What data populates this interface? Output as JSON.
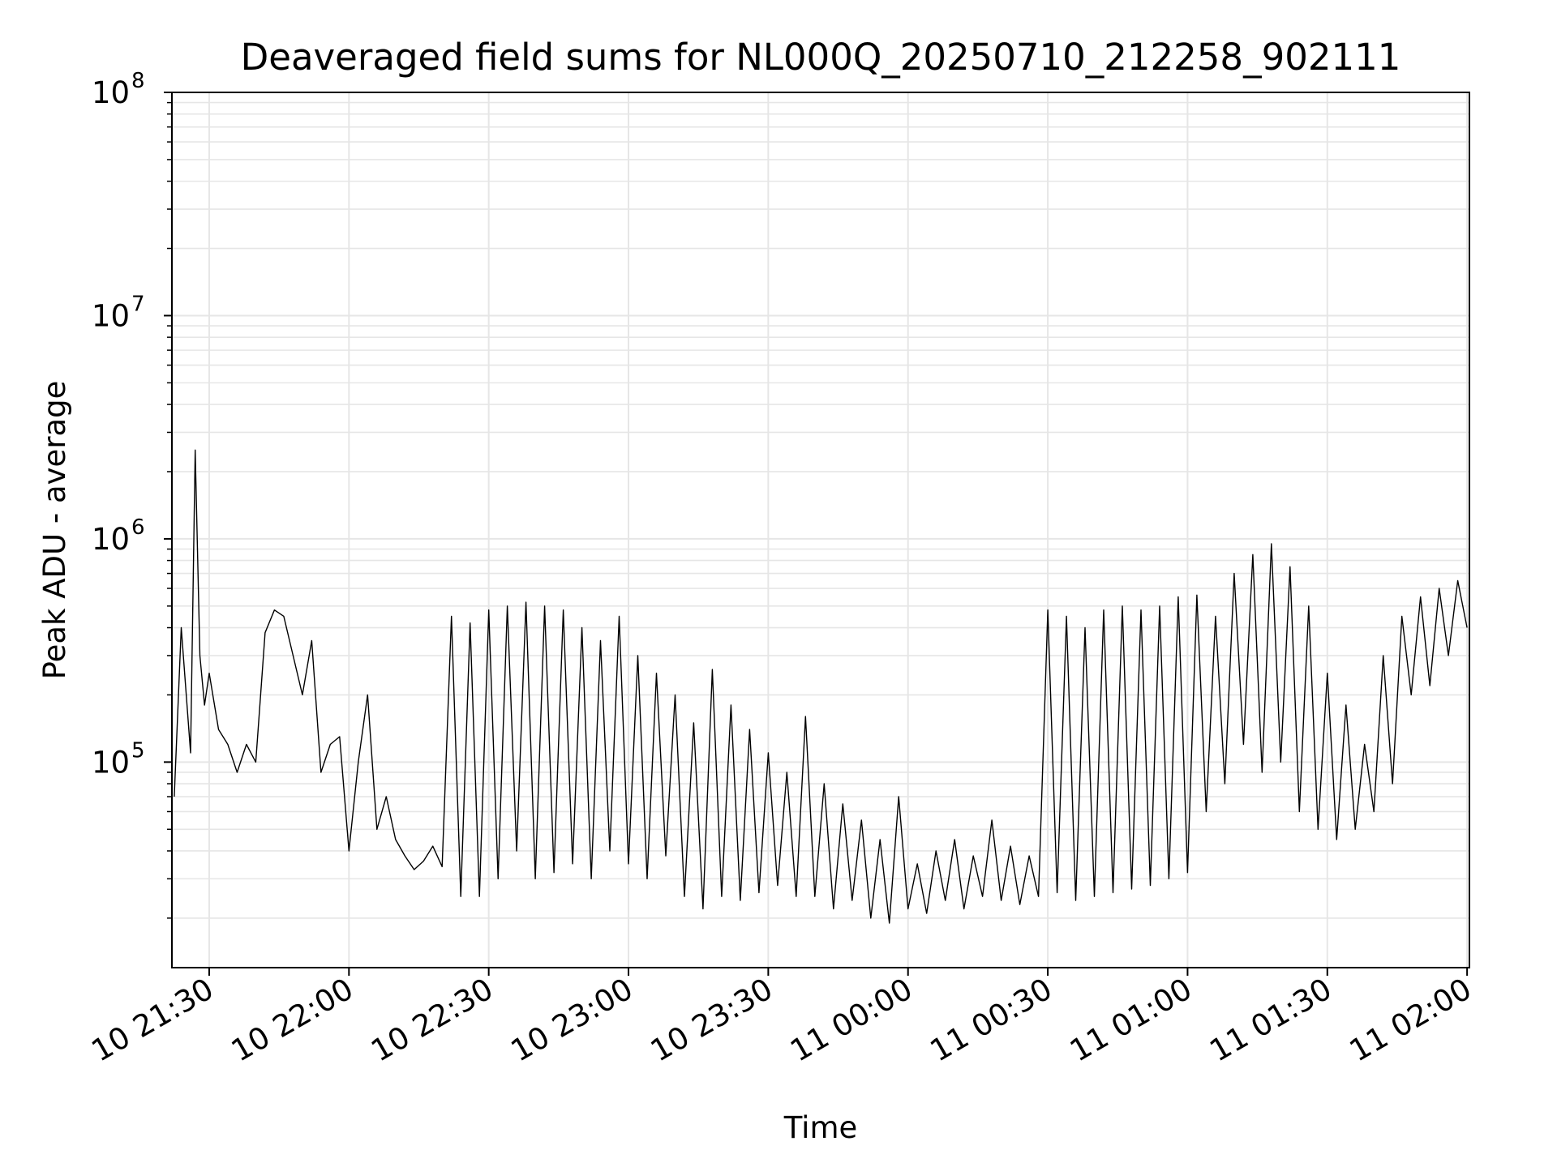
{
  "chart_data": {
    "type": "line",
    "title": "Deaveraged field sums for NL000Q_20250710_212258_902111",
    "xlabel": "Time",
    "ylabel": "Peak ADU - average",
    "yscale": "log",
    "ylim": [
      12000,
      100000000
    ],
    "xlim": [
      "2025-07-10 21:22:00",
      "2025-07-11 02:00:30"
    ],
    "grid": true,
    "line_color": "#000000",
    "grid_color": "#e6e6e6",
    "x_ticks": [
      {
        "value": "2025-07-10 21:30",
        "label": "10 21:30"
      },
      {
        "value": "2025-07-10 22:00",
        "label": "10 22:00"
      },
      {
        "value": "2025-07-10 22:30",
        "label": "10 22:30"
      },
      {
        "value": "2025-07-10 23:00",
        "label": "10 23:00"
      },
      {
        "value": "2025-07-10 23:30",
        "label": "10 23:30"
      },
      {
        "value": "2025-07-11 00:00",
        "label": "11 00:00"
      },
      {
        "value": "2025-07-11 00:30",
        "label": "11 00:30"
      },
      {
        "value": "2025-07-11 01:00",
        "label": "11 01:00"
      },
      {
        "value": "2025-07-11 01:30",
        "label": "11 01:30"
      },
      {
        "value": "2025-07-11 02:00",
        "label": "11 02:00"
      }
    ],
    "y_ticks": [
      {
        "value": 100000,
        "base": "10",
        "exp": "5"
      },
      {
        "value": 1000000,
        "base": "10",
        "exp": "6"
      },
      {
        "value": 10000000,
        "base": "10",
        "exp": "7"
      },
      {
        "value": 100000000,
        "base": "10",
        "exp": "8"
      }
    ],
    "series": [
      {
        "x": [
          "2025-07-10 21:22:30",
          "2025-07-10 21:24:00",
          "2025-07-10 21:26:00",
          "2025-07-10 21:27:00",
          "2025-07-10 21:28:00",
          "2025-07-10 21:29:00",
          "2025-07-10 21:30:00",
          "2025-07-10 21:32:00",
          "2025-07-10 21:34:00",
          "2025-07-10 21:36:00",
          "2025-07-10 21:38:00",
          "2025-07-10 21:40:00",
          "2025-07-10 21:42:00",
          "2025-07-10 21:44:00",
          "2025-07-10 21:46:00",
          "2025-07-10 21:48:00",
          "2025-07-10 21:50:00",
          "2025-07-10 21:52:00",
          "2025-07-10 21:54:00",
          "2025-07-10 21:56:00",
          "2025-07-10 21:58:00",
          "2025-07-10 22:00:00",
          "2025-07-10 22:02:00",
          "2025-07-10 22:04:00",
          "2025-07-10 22:06:00",
          "2025-07-10 22:08:00",
          "2025-07-10 22:10:00",
          "2025-07-10 22:12:00",
          "2025-07-10 22:14:00",
          "2025-07-10 22:16:00",
          "2025-07-10 22:18:00",
          "2025-07-10 22:20:00",
          "2025-07-10 22:22:00",
          "2025-07-10 22:24:00",
          "2025-07-10 22:26:00",
          "2025-07-10 22:28:00",
          "2025-07-10 22:30:00",
          "2025-07-10 22:32:00",
          "2025-07-10 22:34:00",
          "2025-07-10 22:36:00",
          "2025-07-10 22:38:00",
          "2025-07-10 22:40:00",
          "2025-07-10 22:42:00",
          "2025-07-10 22:44:00",
          "2025-07-10 22:46:00",
          "2025-07-10 22:48:00",
          "2025-07-10 22:50:00",
          "2025-07-10 22:52:00",
          "2025-07-10 22:54:00",
          "2025-07-10 22:56:00",
          "2025-07-10 22:58:00",
          "2025-07-10 23:00:00",
          "2025-07-10 23:02:00",
          "2025-07-10 23:04:00",
          "2025-07-10 23:06:00",
          "2025-07-10 23:08:00",
          "2025-07-10 23:10:00",
          "2025-07-10 23:12:00",
          "2025-07-10 23:14:00",
          "2025-07-10 23:16:00",
          "2025-07-10 23:18:00",
          "2025-07-10 23:20:00",
          "2025-07-10 23:22:00",
          "2025-07-10 23:24:00",
          "2025-07-10 23:26:00",
          "2025-07-10 23:28:00",
          "2025-07-10 23:30:00",
          "2025-07-10 23:32:00",
          "2025-07-10 23:34:00",
          "2025-07-10 23:36:00",
          "2025-07-10 23:38:00",
          "2025-07-10 23:40:00",
          "2025-07-10 23:42:00",
          "2025-07-10 23:44:00",
          "2025-07-10 23:46:00",
          "2025-07-10 23:48:00",
          "2025-07-10 23:50:00",
          "2025-07-10 23:52:00",
          "2025-07-10 23:54:00",
          "2025-07-10 23:56:00",
          "2025-07-10 23:58:00",
          "2025-07-11 00:00:00",
          "2025-07-11 00:02:00",
          "2025-07-11 00:04:00",
          "2025-07-11 00:06:00",
          "2025-07-11 00:08:00",
          "2025-07-11 00:10:00",
          "2025-07-11 00:12:00",
          "2025-07-11 00:14:00",
          "2025-07-11 00:16:00",
          "2025-07-11 00:18:00",
          "2025-07-11 00:20:00",
          "2025-07-11 00:22:00",
          "2025-07-11 00:24:00",
          "2025-07-11 00:26:00",
          "2025-07-11 00:28:00",
          "2025-07-11 00:30:00",
          "2025-07-11 00:32:00",
          "2025-07-11 00:34:00",
          "2025-07-11 00:36:00",
          "2025-07-11 00:38:00",
          "2025-07-11 00:40:00",
          "2025-07-11 00:42:00",
          "2025-07-11 00:44:00",
          "2025-07-11 00:46:00",
          "2025-07-11 00:48:00",
          "2025-07-11 00:50:00",
          "2025-07-11 00:52:00",
          "2025-07-11 00:54:00",
          "2025-07-11 00:56:00",
          "2025-07-11 00:58:00",
          "2025-07-11 01:00:00",
          "2025-07-11 01:02:00",
          "2025-07-11 01:04:00",
          "2025-07-11 01:06:00",
          "2025-07-11 01:08:00",
          "2025-07-11 01:10:00",
          "2025-07-11 01:12:00",
          "2025-07-11 01:14:00",
          "2025-07-11 01:16:00",
          "2025-07-11 01:18:00",
          "2025-07-11 01:20:00",
          "2025-07-11 01:22:00",
          "2025-07-11 01:24:00",
          "2025-07-11 01:26:00",
          "2025-07-11 01:28:00",
          "2025-07-11 01:30:00",
          "2025-07-11 01:32:00",
          "2025-07-11 01:34:00",
          "2025-07-11 01:36:00",
          "2025-07-11 01:38:00",
          "2025-07-11 01:40:00",
          "2025-07-11 01:42:00",
          "2025-07-11 01:44:00",
          "2025-07-11 01:46:00",
          "2025-07-11 01:48:00",
          "2025-07-11 01:50:00",
          "2025-07-11 01:52:00",
          "2025-07-11 01:54:00",
          "2025-07-11 01:56:00",
          "2025-07-11 01:58:00",
          "2025-07-11 02:00:00"
        ],
        "y": [
          70000,
          400000,
          110000,
          2500000,
          300000,
          180000,
          250000,
          140000,
          120000,
          90000,
          120000,
          100000,
          380000,
          480000,
          450000,
          300000,
          200000,
          350000,
          90000,
          120000,
          130000,
          40000,
          100000,
          200000,
          50000,
          70000,
          45000,
          38000,
          33000,
          36000,
          42000,
          34000,
          450000,
          25000,
          420000,
          25000,
          480000,
          30000,
          500000,
          40000,
          520000,
          30000,
          500000,
          32000,
          480000,
          35000,
          400000,
          30000,
          350000,
          40000,
          450000,
          35000,
          300000,
          30000,
          250000,
          38000,
          200000,
          25000,
          150000,
          22000,
          260000,
          25000,
          180000,
          24000,
          140000,
          26000,
          110000,
          28000,
          90000,
          25000,
          160000,
          25000,
          80000,
          22000,
          65000,
          24000,
          55000,
          20000,
          45000,
          19000,
          70000,
          22000,
          35000,
          21000,
          40000,
          24000,
          45000,
          22000,
          38000,
          25000,
          55000,
          24000,
          42000,
          23000,
          38000,
          25000,
          480000,
          26000,
          450000,
          24000,
          400000,
          25000,
          480000,
          26000,
          500000,
          27000,
          480000,
          28000,
          500000,
          30000,
          550000,
          32000,
          560000,
          60000,
          450000,
          80000,
          700000,
          120000,
          850000,
          90000,
          950000,
          100000,
          750000,
          60000,
          500000,
          50000,
          250000,
          45000,
          180000,
          50000,
          120000,
          60000,
          300000,
          80000,
          450000,
          200000,
          550000,
          220000,
          600000,
          300000,
          650000,
          400000
        ]
      }
    ]
  }
}
